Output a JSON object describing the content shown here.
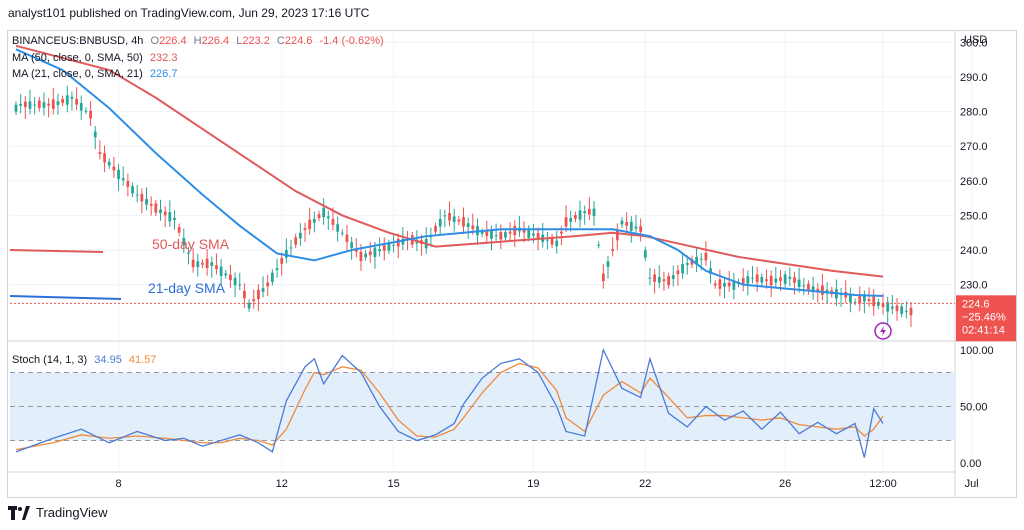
{
  "header": {
    "published": "analyst101 published on TradingView.com, Jun 29, 2023 17:16 UTC"
  },
  "symbol": {
    "name": "BINANCEUS:BNBUSD, 4h",
    "o_label": "O",
    "o": "226.4",
    "h_label": "H",
    "h": "226.4",
    "l_label": "L",
    "l": "223.2",
    "c_label": "C",
    "c": "224.6",
    "change": "-1.4 (-0.62%)"
  },
  "indicators": {
    "ma50": {
      "label": "MA (50, close, 0, SMA, 50)",
      "value": "232.3",
      "color": "#e05a5a"
    },
    "ma21": {
      "label": "MA (21, close, 0, SMA, 21)",
      "value": "226.7",
      "color": "#2e8ee6"
    },
    "stoch": {
      "label": "Stoch (14, 1, 3)",
      "k": "34.95",
      "d": "41.57",
      "k_color": "#4a7bd8",
      "d_color": "#f08a3c"
    }
  },
  "annotations": {
    "sma50": "50-day SMA",
    "sma21": "21-day SMA"
  },
  "price_axis": {
    "currency": "USD",
    "last_price": "224.6",
    "last_change": "−25.46%",
    "countdown": "02:41:14"
  },
  "footer": {
    "brand": "TradingView"
  },
  "colors": {
    "up": "#26a69a",
    "down": "#ef5350",
    "stoch_band": "#e3eefb"
  },
  "chart_data": [
    {
      "type": "candlestick",
      "title": "BINANCEUS:BNBUSD, 4h",
      "ylabel": "USD",
      "ylim": [
        214,
        303
      ],
      "y_ticks": [
        "230.0",
        "240.0",
        "250.0",
        "260.0",
        "270.0",
        "280.0",
        "290.0",
        "300.0"
      ],
      "x_tick_labels": [
        "8",
        "12",
        "15",
        "19",
        "22",
        "26",
        "12:00",
        "Jul"
      ],
      "x_tick_bars": [
        22,
        57,
        81,
        111,
        135,
        165,
        186,
        205
      ],
      "n_bars": 193,
      "ohlc_anchors": [
        [
          0,
          280,
          300,
          277,
          282
        ],
        [
          8,
          279,
          285,
          276,
          282
        ],
        [
          12,
          282,
          286,
          280,
          284
        ],
        [
          16,
          283,
          286,
          280,
          279
        ],
        [
          18,
          271,
          276,
          267,
          268
        ],
        [
          22,
          264,
          268,
          260,
          262
        ],
        [
          26,
          258,
          262,
          254,
          256
        ],
        [
          30,
          255,
          258,
          250,
          252
        ],
        [
          34,
          250,
          260,
          246,
          249
        ],
        [
          38,
          242,
          248,
          233,
          236
        ],
        [
          42,
          236,
          240,
          233,
          236
        ],
        [
          48,
          234,
          238,
          228,
          230
        ],
        [
          50,
          227,
          232,
          223,
          224
        ],
        [
          54,
          225,
          232,
          224,
          230
        ],
        [
          58,
          233,
          242,
          230,
          239
        ],
        [
          62,
          240,
          248,
          235,
          246
        ],
        [
          66,
          252,
          256,
          248,
          251
        ],
        [
          70,
          248,
          252,
          243,
          245
        ],
        [
          74,
          238,
          242,
          234,
          238
        ],
        [
          78,
          237,
          243,
          233,
          240
        ],
        [
          84,
          241,
          245,
          238,
          243
        ],
        [
          88,
          243,
          246,
          239,
          242
        ],
        [
          92,
          248,
          251,
          246,
          250
        ],
        [
          96,
          247,
          250,
          246,
          248
        ],
        [
          100,
          246,
          249,
          244,
          245
        ],
        [
          104,
          245,
          247,
          243,
          244
        ],
        [
          108,
          244,
          248,
          242,
          246
        ],
        [
          112,
          245,
          247,
          243,
          244
        ],
        [
          116,
          243,
          246,
          241,
          242
        ],
        [
          118,
          244,
          250,
          241,
          248
        ],
        [
          122,
          250,
          254,
          246,
          251
        ],
        [
          124,
          250,
          253,
          248,
          251
        ],
        [
          126,
          242,
          252,
          226,
          232
        ],
        [
          130,
          243,
          251,
          236,
          248
        ],
        [
          134,
          247,
          252,
          241,
          246
        ],
        [
          136,
          238,
          248,
          226,
          232
        ],
        [
          140,
          229,
          238,
          225,
          231
        ],
        [
          144,
          233,
          240,
          228,
          236
        ],
        [
          148,
          237,
          240,
          232,
          238
        ],
        [
          150,
          232,
          236,
          227,
          230
        ],
        [
          154,
          228,
          232,
          225,
          230
        ],
        [
          158,
          231,
          235,
          228,
          232
        ],
        [
          162,
          230,
          233,
          228,
          231
        ],
        [
          166,
          231,
          234,
          228,
          232
        ],
        [
          170,
          230,
          233,
          227,
          229
        ],
        [
          174,
          228,
          231,
          225,
          228
        ],
        [
          178,
          228,
          230,
          225,
          227
        ],
        [
          180,
          226,
          229,
          222,
          225
        ],
        [
          182,
          225,
          228,
          222,
          226
        ],
        [
          186,
          226,
          228,
          224,
          224
        ]
      ],
      "series": [
        {
          "name": "MA (50, close, 0, SMA, 50)",
          "points": [
            [
              0,
              299
            ],
            [
              20,
              292
            ],
            [
              30,
              284
            ],
            [
              40,
              275
            ],
            [
              50,
              266
            ],
            [
              60,
              257
            ],
            [
              70,
              250
            ],
            [
              80,
              245
            ],
            [
              90,
              241
            ],
            [
              100,
              242
            ],
            [
              110,
              243
            ],
            [
              120,
              244
            ],
            [
              128,
              245
            ],
            [
              135,
              244
            ],
            [
              145,
              241
            ],
            [
              155,
              238
            ],
            [
              165,
              236
            ],
            [
              175,
              234
            ],
            [
              186,
              232.3
            ]
          ]
        },
        {
          "name": "MA (21, close, 0, SMA, 21)",
          "points": [
            [
              0,
              298
            ],
            [
              10,
              292
            ],
            [
              20,
              281
            ],
            [
              30,
              268
            ],
            [
              40,
              256
            ],
            [
              48,
              247
            ],
            [
              56,
              239
            ],
            [
              64,
              237
            ],
            [
              72,
              240
            ],
            [
              80,
              242
            ],
            [
              88,
              244
            ],
            [
              96,
              245
            ],
            [
              104,
              246
            ],
            [
              112,
              246
            ],
            [
              120,
              246
            ],
            [
              128,
              246
            ],
            [
              136,
              244
            ],
            [
              142,
              240
            ],
            [
              148,
              234
            ],
            [
              156,
              230
            ],
            [
              164,
              229
            ],
            [
              172,
              228
            ],
            [
              180,
              227
            ],
            [
              186,
              226.7
            ]
          ]
        }
      ]
    },
    {
      "type": "line",
      "title": "Stoch (14, 1, 3)",
      "ylim": [
        -6,
        106
      ],
      "y_ticks": [
        "0.00",
        "50.00",
        "100.00"
      ],
      "bands": [
        20,
        80
      ],
      "series": [
        {
          "name": "%K",
          "points": [
            [
              0,
              10
            ],
            [
              8,
              22
            ],
            [
              14,
              30
            ],
            [
              20,
              18
            ],
            [
              26,
              28
            ],
            [
              32,
              20
            ],
            [
              36,
              22
            ],
            [
              40,
              15
            ],
            [
              44,
              20
            ],
            [
              48,
              25
            ],
            [
              52,
              18
            ],
            [
              55,
              10
            ],
            [
              58,
              55
            ],
            [
              62,
              85
            ],
            [
              64,
              92
            ],
            [
              66,
              70
            ],
            [
              70,
              95
            ],
            [
              74,
              80
            ],
            [
              78,
              50
            ],
            [
              82,
              28
            ],
            [
              86,
              20
            ],
            [
              90,
              25
            ],
            [
              94,
              35
            ],
            [
              96,
              52
            ],
            [
              100,
              75
            ],
            [
              104,
              88
            ],
            [
              108,
              92
            ],
            [
              112,
              80
            ],
            [
              116,
              50
            ],
            [
              118,
              28
            ],
            [
              122,
              24
            ],
            [
              126,
              100
            ],
            [
              130,
              66
            ],
            [
              134,
              58
            ],
            [
              136,
              92
            ],
            [
              140,
              44
            ],
            [
              144,
              32
            ],
            [
              148,
              50
            ],
            [
              152,
              38
            ],
            [
              156,
              46
            ],
            [
              160,
              30
            ],
            [
              164,
              45
            ],
            [
              168,
              26
            ],
            [
              172,
              36
            ],
            [
              176,
              26
            ],
            [
              180,
              35
            ],
            [
              182,
              5
            ],
            [
              184,
              48
            ],
            [
              186,
              34.95
            ]
          ]
        },
        {
          "name": "%D",
          "points": [
            [
              0,
              12
            ],
            [
              8,
              18
            ],
            [
              14,
              25
            ],
            [
              20,
              22
            ],
            [
              26,
              24
            ],
            [
              32,
              22
            ],
            [
              36,
              20
            ],
            [
              40,
              18
            ],
            [
              44,
              18
            ],
            [
              48,
              22
            ],
            [
              52,
              20
            ],
            [
              55,
              16
            ],
            [
              58,
              30
            ],
            [
              62,
              65
            ],
            [
              64,
              80
            ],
            [
              66,
              78
            ],
            [
              70,
              85
            ],
            [
              74,
              82
            ],
            [
              78,
              62
            ],
            [
              82,
              38
            ],
            [
              86,
              24
            ],
            [
              90,
              23
            ],
            [
              94,
              30
            ],
            [
              96,
              40
            ],
            [
              100,
              62
            ],
            [
              104,
              80
            ],
            [
              108,
              88
            ],
            [
              112,
              84
            ],
            [
              116,
              64
            ],
            [
              118,
              40
            ],
            [
              122,
              28
            ],
            [
              126,
              60
            ],
            [
              130,
              72
            ],
            [
              134,
              62
            ],
            [
              136,
              75
            ],
            [
              140,
              58
            ],
            [
              144,
              40
            ],
            [
              148,
              42
            ],
            [
              152,
              42
            ],
            [
              156,
              40
            ],
            [
              160,
              38
            ],
            [
              164,
              40
            ],
            [
              168,
              34
            ],
            [
              172,
              32
            ],
            [
              176,
              30
            ],
            [
              180,
              32
            ],
            [
              182,
              24
            ],
            [
              184,
              30
            ],
            [
              186,
              41.57
            ]
          ]
        }
      ]
    }
  ]
}
